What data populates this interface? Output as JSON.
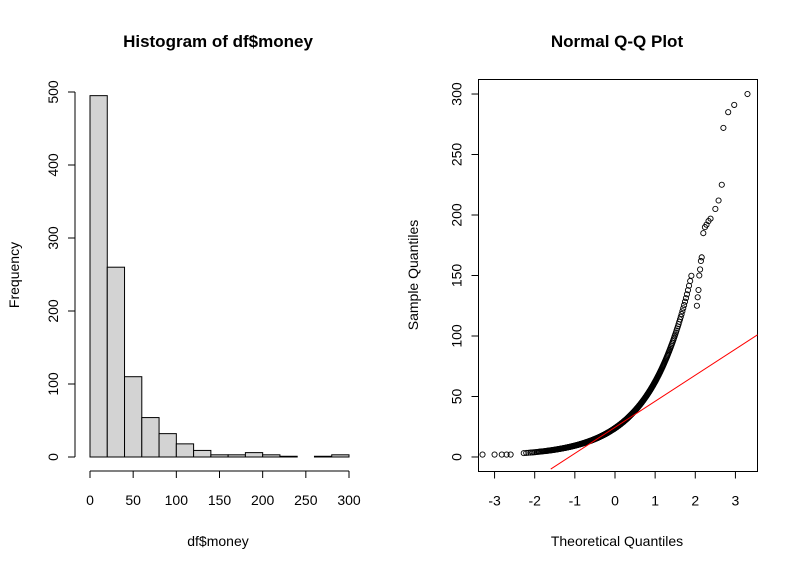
{
  "chart_data": [
    {
      "type": "bar",
      "title": "Histogram of df$money",
      "xlabel": "df$money",
      "ylabel": "Frequency",
      "bin_width": 20,
      "bins_start": [
        0,
        20,
        40,
        60,
        80,
        100,
        120,
        140,
        160,
        180,
        200,
        220,
        240,
        260,
        280
      ],
      "values": [
        495,
        260,
        110,
        54,
        32,
        18,
        9,
        3,
        3,
        6,
        3,
        1,
        0,
        1,
        3
      ],
      "xlim": [
        0,
        300
      ],
      "ylim": [
        0,
        500
      ],
      "xticks": [
        "0",
        "50",
        "100",
        "150",
        "200",
        "250",
        "300"
      ],
      "yticks": [
        "0",
        "100",
        "200",
        "300",
        "400",
        "500"
      ]
    },
    {
      "type": "scatter",
      "title": "Normal Q-Q Plot",
      "xlabel": "Theoretical Quantiles",
      "ylabel": "Sample Quantiles",
      "xlim": [
        -3.4,
        3.55
      ],
      "ylim": [
        -12,
        312
      ],
      "xticks": [
        "-3",
        "-2",
        "-1",
        "0",
        "1",
        "2",
        "3"
      ],
      "yticks": [
        "0",
        "50",
        "100",
        "150",
        "200",
        "250",
        "300"
      ],
      "upper_tail": [
        {
          "x": 2.04,
          "y": 125
        },
        {
          "x": 2.06,
          "y": 132
        },
        {
          "x": 2.08,
          "y": 138
        },
        {
          "x": 2.1,
          "y": 150
        },
        {
          "x": 2.12,
          "y": 155
        },
        {
          "x": 2.14,
          "y": 162
        },
        {
          "x": 2.16,
          "y": 165
        },
        {
          "x": 2.2,
          "y": 185
        },
        {
          "x": 2.24,
          "y": 190
        },
        {
          "x": 2.28,
          "y": 192
        },
        {
          "x": 2.33,
          "y": 195
        },
        {
          "x": 2.38,
          "y": 197
        },
        {
          "x": 2.5,
          "y": 205
        },
        {
          "x": 2.58,
          "y": 212
        },
        {
          "x": 2.66,
          "y": 225
        },
        {
          "x": 2.7,
          "y": 272
        },
        {
          "x": 2.82,
          "y": 285
        },
        {
          "x": 2.97,
          "y": 291
        },
        {
          "x": 3.3,
          "y": 300
        }
      ],
      "lower_tail": [
        {
          "x": -3.3,
          "y": 2
        },
        {
          "x": -3.0,
          "y": 2
        },
        {
          "x": -2.82,
          "y": 2
        },
        {
          "x": -2.7,
          "y": 2
        },
        {
          "x": -2.6,
          "y": 2
        }
      ],
      "reference_line": {
        "x": [
          -1.6,
          3.55
        ],
        "y": [
          -10,
          101
        ]
      }
    }
  ]
}
